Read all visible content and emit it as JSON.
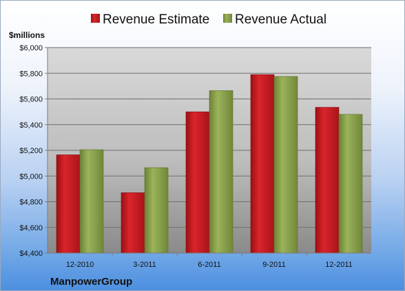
{
  "chart_data": {
    "type": "bar",
    "title": "",
    "ylabel": "$millions",
    "xlabel": "",
    "categories": [
      "12-2010",
      "3-2011",
      "6-2011",
      "9-2011",
      "12-2011"
    ],
    "series": [
      {
        "name": "Revenue Estimate",
        "color": "#c8161d",
        "values": [
          5165,
          4870,
          5500,
          5790,
          5535
        ]
      },
      {
        "name": "Revenue Actual",
        "color": "#8aa04a",
        "values": [
          5205,
          5065,
          5665,
          5775,
          5480
        ]
      }
    ],
    "ylim": [
      4400,
      6000
    ],
    "yticks": [
      "$4,400",
      "$4,600",
      "$4,800",
      "$5,000",
      "$5,200",
      "$5,400",
      "$5,600",
      "$5,800",
      "$6,000"
    ],
    "ytick_values": [
      4400,
      4600,
      4800,
      5000,
      5200,
      5400,
      5600,
      5800,
      6000
    ],
    "grid": true,
    "legend": "top",
    "footer": "ManpowerGroup"
  }
}
